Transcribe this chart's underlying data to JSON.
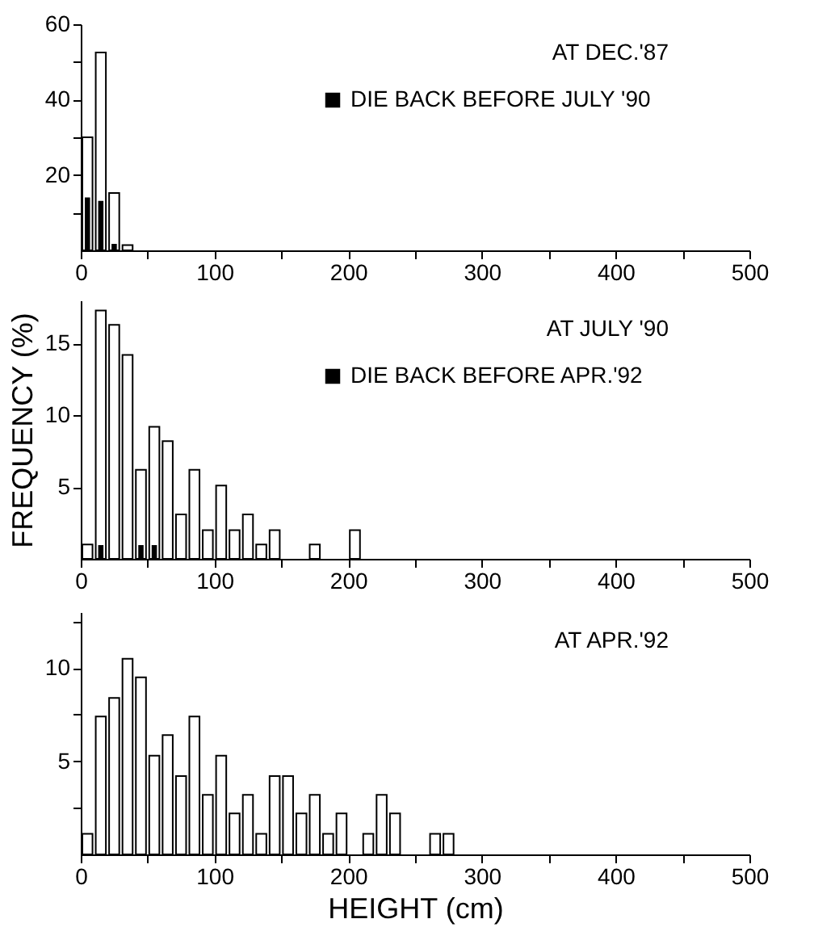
{
  "chart_data": [
    {
      "type": "histogram",
      "annotations": [
        "AT DEC.'87"
      ],
      "legend": "top right",
      "bins": [
        0,
        10,
        20,
        30,
        40
      ],
      "series": [
        {
          "color": "#ffffff",
          "values": [
            30,
            52.5,
            15.2,
            1.4
          ]
        },
        {
          "name": "DIE BACK BEFORE JULY '90",
          "color": "#000000",
          "values": [
            13.8,
            12.9,
            1.5,
            null
          ]
        }
      ],
      "xlim": [
        0,
        500
      ],
      "xticks": [
        0,
        {
          "value": 50,
          "label": null
        },
        100,
        {
          "value": 150,
          "label": null
        },
        200,
        {
          "value": 250,
          "label": null
        },
        300,
        {
          "value": 350,
          "label": null
        },
        400,
        {
          "value": 450,
          "label": null
        },
        500
      ],
      "ylim": [
        0,
        60
      ],
      "yticks": [
        {
          "value": 10,
          "label": null
        },
        20,
        {
          "value": 30,
          "label": null
        },
        40,
        {
          "value": 50,
          "label": null
        },
        60
      ],
      "grid": false
    },
    {
      "type": "histogram",
      "annotations": [
        "AT JULY '90"
      ],
      "legend": "top right",
      "ylabel": "FREQUENCY (%)",
      "bins": [
        0,
        10,
        20,
        30,
        40,
        50,
        60,
        70,
        80,
        90,
        100,
        110,
        120,
        130,
        140,
        150,
        160,
        170,
        180,
        190,
        200,
        210
      ],
      "series": [
        {
          "color": "#ffffff",
          "values": [
            1.0,
            17.3,
            16.3,
            14.2,
            6.2,
            9.2,
            8.2,
            3.1,
            6.2,
            2.0,
            5.1,
            2.0,
            3.1,
            1.0,
            2.0,
            null,
            null,
            1.0,
            null,
            null,
            2.0
          ]
        },
        {
          "name": "DIE BACK BEFORE APR.'92",
          "color": "#000000",
          "values": [
            null,
            0.9,
            null,
            null,
            0.9,
            0.9,
            null,
            null,
            null,
            null,
            null,
            null,
            null,
            null,
            null,
            null,
            null,
            null,
            null,
            null,
            null
          ]
        }
      ],
      "xlim": [
        0,
        500
      ],
      "xticks": [
        0,
        {
          "value": 50,
          "label": null
        },
        100,
        {
          "value": 150,
          "label": null
        },
        200,
        {
          "value": 250,
          "label": null
        },
        300,
        {
          "value": 350,
          "label": null
        },
        400,
        {
          "value": 450,
          "label": null
        },
        500
      ],
      "ylim": [
        0,
        18
      ],
      "yticks": [
        5,
        10,
        15
      ],
      "grid": false
    },
    {
      "type": "histogram",
      "annotations": [
        "AT APR.'92"
      ],
      "xlabel": "HEIGHT (cm)",
      "bins": [
        0,
        10,
        20,
        30,
        40,
        50,
        60,
        70,
        80,
        90,
        100,
        110,
        120,
        130,
        140,
        150,
        160,
        170,
        180,
        190,
        200,
        210,
        220,
        230,
        240,
        250,
        260,
        270,
        280
      ],
      "series": [
        {
          "color": "#ffffff",
          "values": [
            1.1,
            7.4,
            8.4,
            10.5,
            9.5,
            5.3,
            6.4,
            4.2,
            7.4,
            3.2,
            5.3,
            2.2,
            3.2,
            1.1,
            4.2,
            4.2,
            2.2,
            3.2,
            1.1,
            2.2,
            null,
            1.1,
            3.2,
            2.2,
            null,
            null,
            1.1,
            1.1
          ]
        }
      ],
      "xlim": [
        0,
        500
      ],
      "xticks": [
        0,
        {
          "value": 50,
          "label": null
        },
        100,
        {
          "value": 150,
          "label": null
        },
        200,
        {
          "value": 250,
          "label": null
        },
        300,
        {
          "value": 350,
          "label": null
        },
        400,
        {
          "value": 450,
          "label": null
        },
        500
      ],
      "ylim": [
        0,
        13
      ],
      "yticks": [
        {
          "value": 2.5,
          "label": null
        },
        5,
        {
          "value": 7.5,
          "label": null
        },
        10,
        {
          "value": 12.5,
          "label": null
        }
      ],
      "grid": false
    }
  ]
}
